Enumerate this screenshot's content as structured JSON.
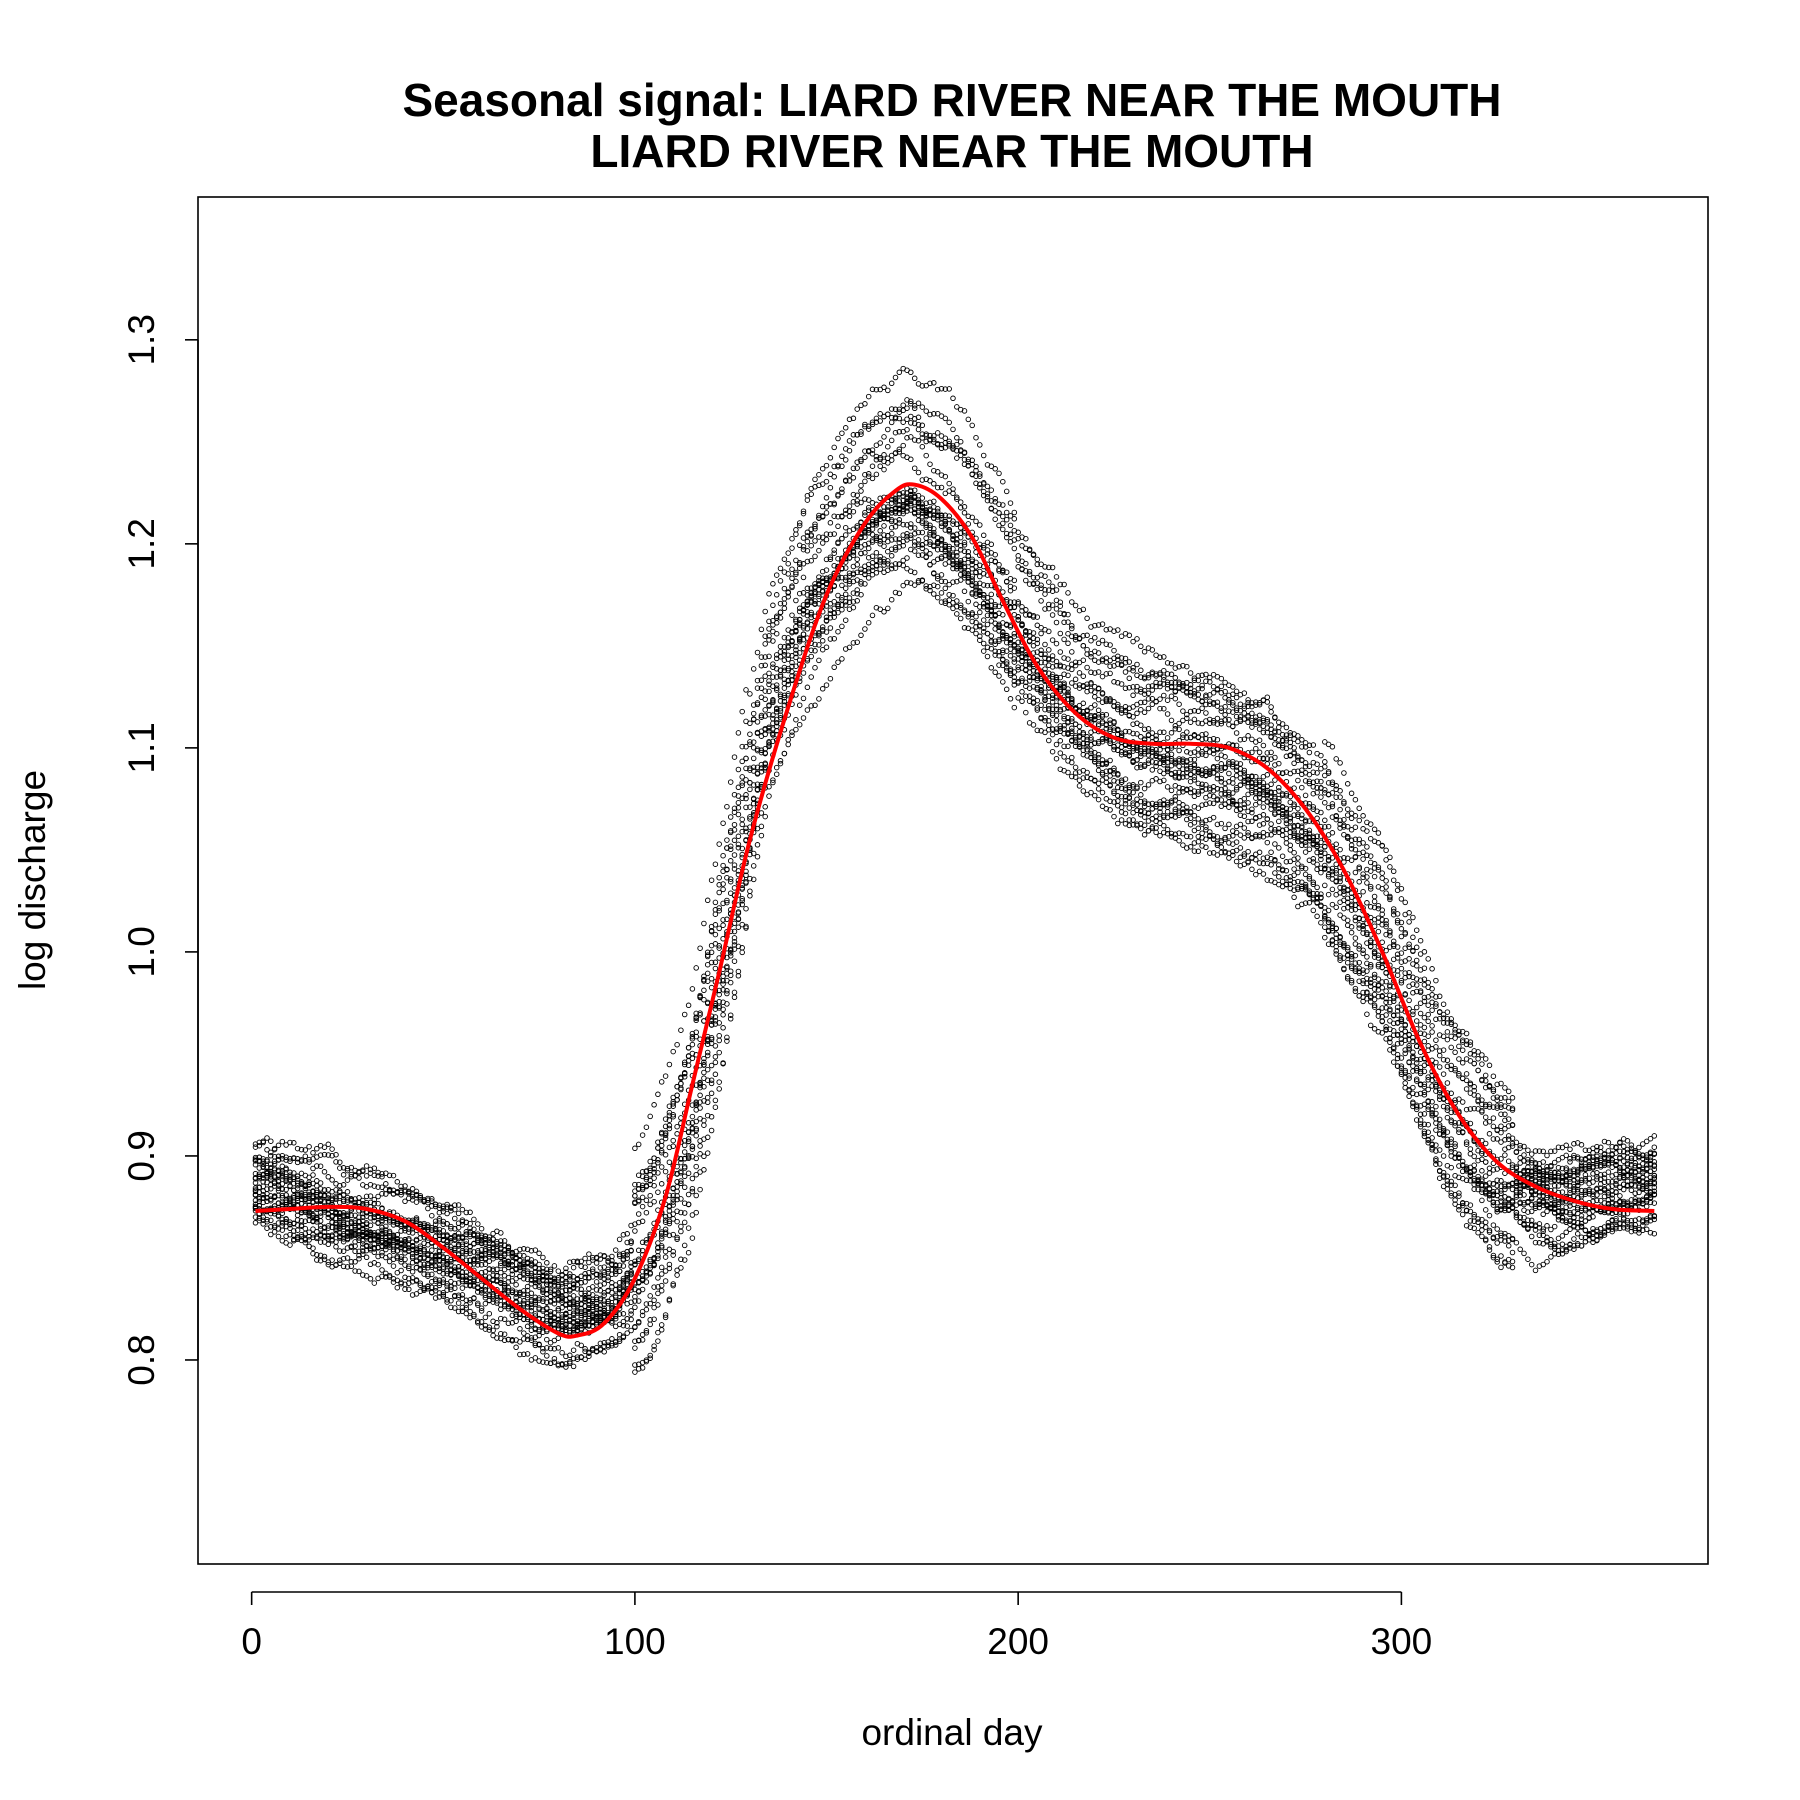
{
  "chart_data": {
    "type": "scatter",
    "title": "Seasonal signal: LIARD RIVER NEAR THE MOUTH",
    "subtitle": "LIARD RIVER NEAR THE MOUTH",
    "xlabel": "ordinal day",
    "ylabel": "log discharge",
    "xlim": [
      -14,
      380
    ],
    "ylim": [
      0.7,
      1.37
    ],
    "xticks": [
      0,
      100,
      200,
      300
    ],
    "xtick_labels": [
      "0",
      "100",
      "200",
      "300"
    ],
    "yticks": [
      0.8,
      0.9,
      1.0,
      1.1,
      1.2,
      1.3
    ],
    "ytick_labels": [
      "0.8",
      "0.9",
      "1.0",
      "1.1",
      "1.2",
      "1.3"
    ],
    "grid": false,
    "colors": {
      "points": "#000000",
      "smooth": "#ff0000",
      "frame": "#000000"
    },
    "daily_points": {
      "description_of_series": "one open circle per day per year of record",
      "years_of_record": 24,
      "days": [
        1,
        366
      ],
      "envelope_center": [
        [
          1,
          0.885
        ],
        [
          20,
          0.872
        ],
        [
          40,
          0.86
        ],
        [
          60,
          0.845
        ],
        [
          80,
          0.825
        ],
        [
          95,
          0.83
        ],
        [
          105,
          0.86
        ],
        [
          115,
          0.92
        ],
        [
          125,
          1.02
        ],
        [
          135,
          1.12
        ],
        [
          145,
          1.17
        ],
        [
          160,
          1.21
        ],
        [
          172,
          1.225
        ],
        [
          185,
          1.205
        ],
        [
          200,
          1.16
        ],
        [
          215,
          1.12
        ],
        [
          230,
          1.1
        ],
        [
          250,
          1.09
        ],
        [
          265,
          1.08
        ],
        [
          280,
          1.05
        ],
        [
          295,
          1.0
        ],
        [
          310,
          0.93
        ],
        [
          325,
          0.89
        ],
        [
          340,
          0.88
        ],
        [
          355,
          0.885
        ],
        [
          366,
          0.89
        ]
      ]
    },
    "series": [
      {
        "values_xy": [
          [
            1,
            0.873
          ],
          [
            10,
            0.874
          ],
          [
            20,
            0.875
          ],
          [
            30,
            0.874
          ],
          [
            40,
            0.868
          ],
          [
            50,
            0.855
          ],
          [
            60,
            0.84
          ],
          [
            70,
            0.825
          ],
          [
            80,
            0.813
          ],
          [
            85,
            0.812
          ],
          [
            92,
            0.818
          ],
          [
            100,
            0.84
          ],
          [
            108,
            0.88
          ],
          [
            115,
            0.935
          ],
          [
            122,
            0.99
          ],
          [
            130,
            1.055
          ],
          [
            140,
            1.12
          ],
          [
            150,
            1.175
          ],
          [
            160,
            1.21
          ],
          [
            168,
            1.226
          ],
          [
            173,
            1.229
          ],
          [
            180,
            1.222
          ],
          [
            188,
            1.203
          ],
          [
            196,
            1.172
          ],
          [
            205,
            1.14
          ],
          [
            215,
            1.117
          ],
          [
            225,
            1.105
          ],
          [
            235,
            1.102
          ],
          [
            245,
            1.102
          ],
          [
            255,
            1.1
          ],
          [
            265,
            1.09
          ],
          [
            275,
            1.07
          ],
          [
            285,
            1.04
          ],
          [
            295,
            1.0
          ],
          [
            305,
            0.955
          ],
          [
            315,
            0.92
          ],
          [
            325,
            0.897
          ],
          [
            335,
            0.885
          ],
          [
            345,
            0.878
          ],
          [
            355,
            0.874
          ],
          [
            366,
            0.873
          ]
        ]
      }
    ]
  }
}
